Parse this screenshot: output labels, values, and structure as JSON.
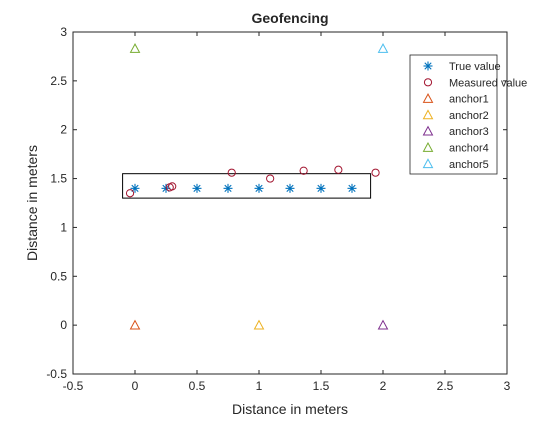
{
  "chart_data": {
    "type": "scatter",
    "title": "Geofencing",
    "xlabel": "Distance in meters",
    "ylabel": "Distance in meters",
    "xlim": [
      -0.5,
      3
    ],
    "ylim": [
      -0.5,
      3
    ],
    "xticks": [
      -0.5,
      0,
      0.5,
      1,
      1.5,
      2,
      2.5,
      3
    ],
    "yticks": [
      -0.5,
      0,
      0.5,
      1,
      1.5,
      2,
      2.5,
      3
    ],
    "xtick_labels": [
      "-0.5",
      "0",
      "0.5",
      "1",
      "1.5",
      "2",
      "2.5",
      "3"
    ],
    "ytick_labels": [
      "-0.5",
      "0",
      "0.5",
      "1",
      "1.5",
      "2",
      "2.5",
      "3"
    ],
    "grid": false,
    "legend": "top-right",
    "series": [
      {
        "name": "True value",
        "marker": "asterisk",
        "color": "#0072BD",
        "x": [
          0,
          0.25,
          0.5,
          0.75,
          1,
          1.25,
          1.5,
          1.75
        ],
        "y": [
          1.4,
          1.4,
          1.4,
          1.4,
          1.4,
          1.4,
          1.4,
          1.4
        ]
      },
      {
        "name": "Measured value",
        "marker": "circle",
        "color": "#A2142F",
        "x": [
          -0.04,
          0.28,
          0.3,
          0.78,
          1.09,
          1.36,
          1.64,
          1.94
        ],
        "y": [
          1.35,
          1.41,
          1.42,
          1.56,
          1.5,
          1.58,
          1.59,
          1.56
        ]
      },
      {
        "name": "anchor1",
        "marker": "triangle",
        "color": "#D95319",
        "x": [
          0
        ],
        "y": [
          0
        ]
      },
      {
        "name": "anchor2",
        "marker": "triangle",
        "color": "#EDB120",
        "x": [
          1
        ],
        "y": [
          0
        ]
      },
      {
        "name": "anchor3",
        "marker": "triangle",
        "color": "#7E2F8E",
        "x": [
          2
        ],
        "y": [
          0
        ]
      },
      {
        "name": "anchor4",
        "marker": "triangle",
        "color": "#77AC30",
        "x": [
          0
        ],
        "y": [
          2.83
        ]
      },
      {
        "name": "anchor5",
        "marker": "triangle",
        "color": "#4DBEEE",
        "x": [
          2
        ],
        "y": [
          2.83
        ]
      }
    ],
    "rectangle": {
      "x": [
        -0.1,
        1.9
      ],
      "y": [
        1.3,
        1.55
      ],
      "color": "#000000"
    }
  }
}
